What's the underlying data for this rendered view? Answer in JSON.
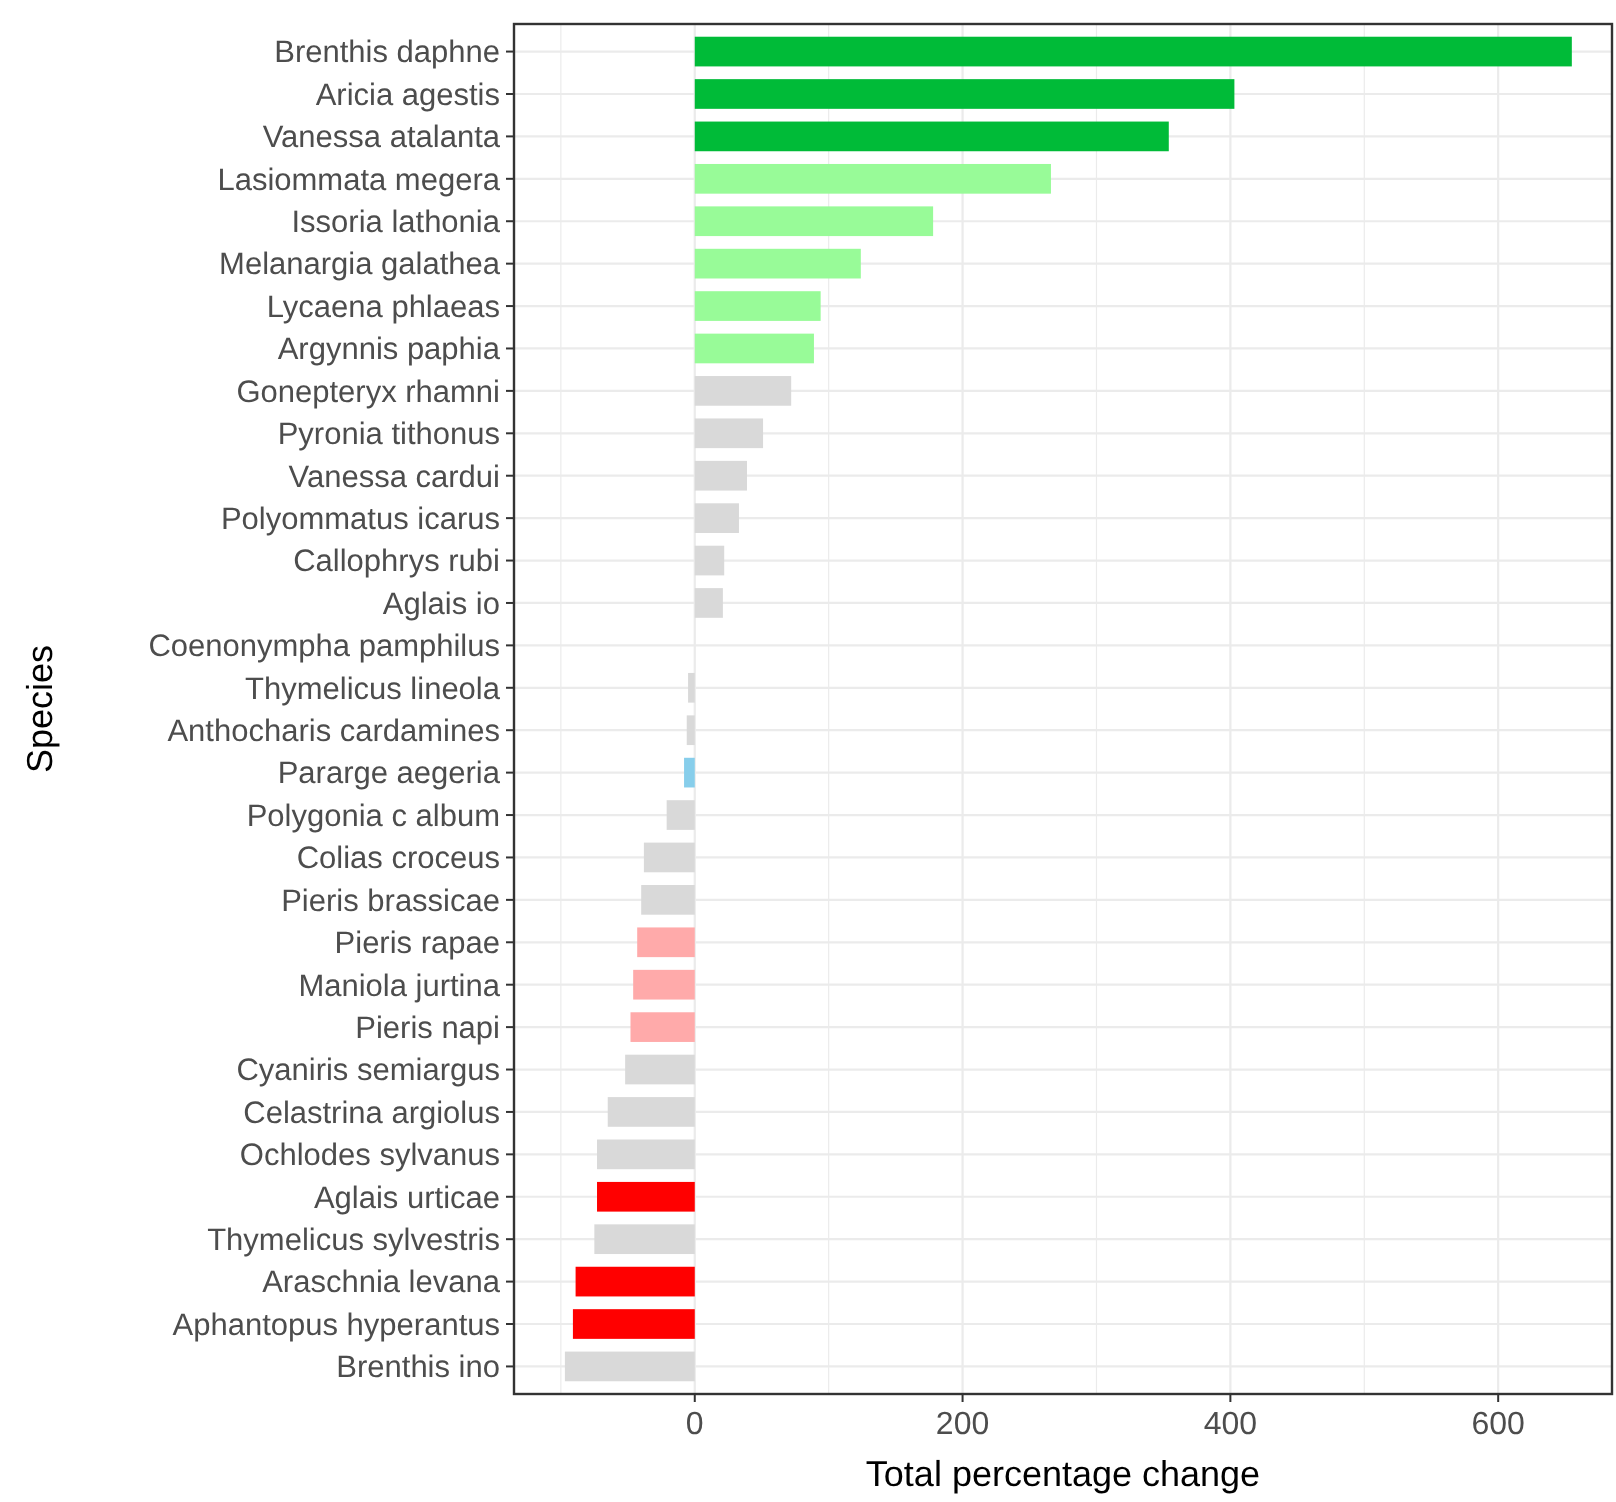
{
  "chart_data": {
    "type": "bar",
    "orientation": "horizontal",
    "xlabel": "Total percentage change",
    "ylabel": "Species",
    "categories": [
      "Brenthis daphne",
      "Aricia agestis",
      "Vanessa atalanta",
      "Lasiommata megera",
      "Issoria lathonia",
      "Melanargia galathea",
      "Lycaena phlaeas",
      "Argynnis paphia",
      "Gonepteryx rhamni",
      "Pyronia tithonus",
      "Vanessa cardui",
      "Polyommatus icarus",
      "Callophrys rubi",
      "Aglais io",
      "Coenonympha pamphilus",
      "Thymelicus lineola",
      "Anthocharis cardamines",
      "Pararge aegeria",
      "Polygonia c album",
      "Colias croceus",
      "Pieris brassicae",
      "Pieris rapae",
      "Maniola jurtina",
      "Pieris napi",
      "Cyaniris semiargus",
      "Celastrina argiolus",
      "Ochlodes sylvanus",
      "Aglais urticae",
      "Thymelicus sylvestris",
      "Araschnia levana",
      "Aphantopus hyperantus",
      "Brenthis ino"
    ],
    "values": [
      655,
      403,
      354,
      266,
      178,
      124,
      94,
      89,
      72,
      51,
      39,
      33,
      22,
      21,
      0,
      -5,
      -6,
      -8,
      -21,
      -38,
      -40,
      -43,
      -46,
      -48,
      -52,
      -65,
      -73,
      -73,
      -75,
      -89,
      -91,
      -97
    ],
    "colors": [
      "#00bb38",
      "#00bb38",
      "#00bb38",
      "#98fb98",
      "#98fb98",
      "#98fb98",
      "#98fb98",
      "#98fb98",
      "#d9d9d9",
      "#d9d9d9",
      "#d9d9d9",
      "#d9d9d9",
      "#d9d9d9",
      "#d9d9d9",
      "#d9d9d9",
      "#d9d9d9",
      "#d9d9d9",
      "#87ceeb",
      "#d9d9d9",
      "#d9d9d9",
      "#d9d9d9",
      "#ffaaaa",
      "#ffaaaa",
      "#ffaaaa",
      "#d9d9d9",
      "#d9d9d9",
      "#d9d9d9",
      "#ff0000",
      "#d9d9d9",
      "#ff0000",
      "#ff0000",
      "#d9d9d9"
    ],
    "xlim": [
      -135,
      685
    ],
    "xticks": [
      {
        "value": -100,
        "label": null
      },
      0,
      {
        "value": 100,
        "label": null
      },
      200,
      {
        "value": 300,
        "label": null
      },
      400,
      {
        "value": 500,
        "label": null
      },
      600
    ],
    "grid": true
  }
}
